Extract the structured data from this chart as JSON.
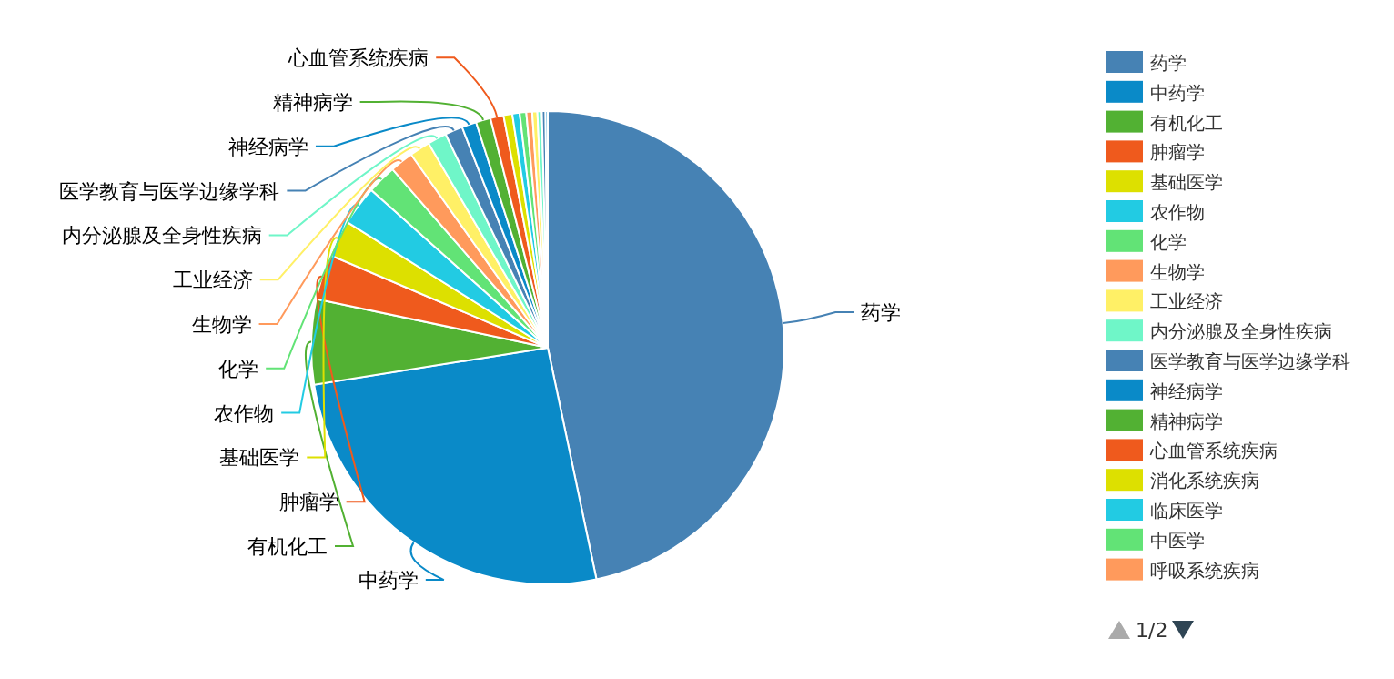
{
  "chart_data": {
    "type": "pie",
    "legend": "right",
    "categories": [
      "药学",
      "中药学",
      "有机化工",
      "肿瘤学",
      "基础医学",
      "农作物",
      "化学",
      "生物学",
      "工业经济",
      "内分泌腺及全身性疾病",
      "医学教育与医学边缘学科",
      "神经病学",
      "精神病学",
      "心血管系统疾病",
      "消化系统疾病",
      "临床医学",
      "中医学",
      "呼吸系统疾病",
      null,
      null,
      null,
      null
    ],
    "values": [
      46.7,
      25.8,
      5.8,
      3.1,
      2.5,
      2.7,
      2,
      1.6,
      1.4,
      1.3,
      1.2,
      1,
      1,
      0.9,
      0.6,
      0.5,
      0.45,
      0.4,
      0.35,
      0.3,
      0.25,
      0.15
    ],
    "colors": [
      "#4682b4",
      "#0a8ac8",
      "#52b133",
      "#ef5a1d",
      "#dde000",
      "#22cbe3",
      "#62e376",
      "#ff9a5c",
      "#fff066",
      "#6ff6c8",
      "#4682b4",
      "#0a8ac8",
      "#52b133",
      "#ef5a1d",
      "#dde000",
      "#22cbe3",
      "#62e376",
      "#ff9a5c",
      "#fff066",
      "#6ff6c8",
      "#4682b4",
      "#0a8ac8"
    ],
    "annotations": [
      "1/2"
    ]
  }
}
